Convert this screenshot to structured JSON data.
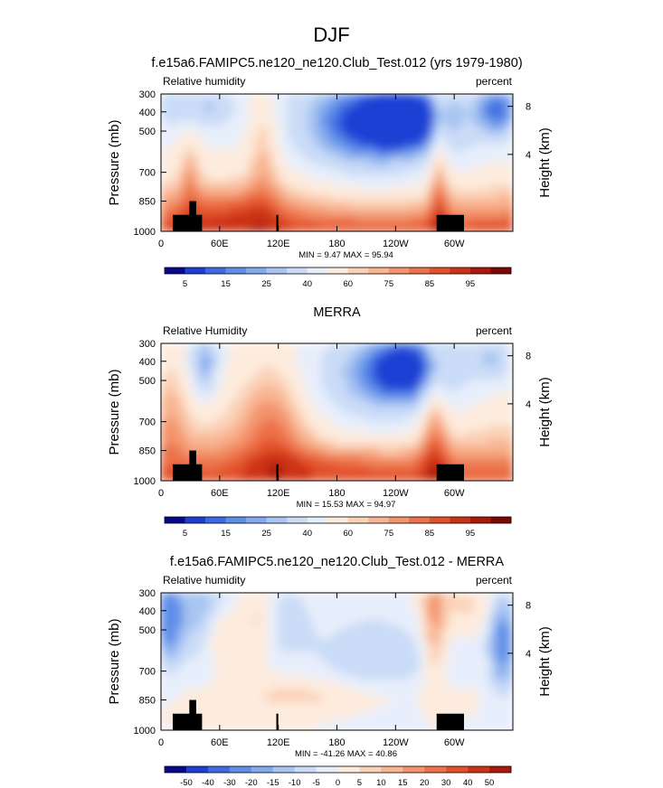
{
  "page_title": "DJF",
  "x_ticks": [
    "0",
    "60E",
    "120E",
    "180",
    "120W",
    "60W"
  ],
  "p_ticks": [
    "300",
    "400",
    "500",
    "700",
    "850",
    "1000"
  ],
  "h_ticks": [
    "8",
    "4"
  ],
  "chart_data": [
    {
      "type": "heatmap",
      "title": "f.e15a6.FAMIPC5.ne120_ne120.Club_Test.012 (yrs 1979-1980)",
      "left_label": "Relative humidity",
      "right_label": "percent",
      "ylabel": "Pressure (mb)",
      "ylabel_right": "Height (km)",
      "stats": "MIN =  9.47  MAX = 95.94",
      "x_range": [
        0,
        360
      ],
      "y_range_mb": [
        1000,
        300
      ],
      "colorbar_labels": [
        "5",
        "15",
        "25",
        "40",
        "60",
        "75",
        "85",
        "95"
      ],
      "colorbar_colors": [
        "#08088a",
        "#1f3fd4",
        "#3d6ae0",
        "#5f8ee8",
        "#84aaee",
        "#a9c5f2",
        "#cadcf7",
        "#e7eefb",
        "#fdebdd",
        "#fbd2b8",
        "#f8b592",
        "#f3946d",
        "#ec7249",
        "#e2512b",
        "#cc3216",
        "#a8190a",
        "#7a0806"
      ],
      "field": "model"
    },
    {
      "type": "heatmap",
      "title": "MERRA",
      "left_label": "Relative Humidity",
      "right_label": "percent",
      "ylabel": "Pressure (mb)",
      "ylabel_right": "Height (km)",
      "stats": "MIN = 15.53  MAX = 94.97",
      "x_range": [
        0,
        360
      ],
      "y_range_mb": [
        1000,
        300
      ],
      "colorbar_labels": [
        "5",
        "15",
        "25",
        "40",
        "60",
        "75",
        "85",
        "95"
      ],
      "colorbar_colors": [
        "#08088a",
        "#1f3fd4",
        "#3d6ae0",
        "#5f8ee8",
        "#84aaee",
        "#a9c5f2",
        "#cadcf7",
        "#e7eefb",
        "#fdebdd",
        "#fbd2b8",
        "#f8b592",
        "#f3946d",
        "#ec7249",
        "#e2512b",
        "#cc3216",
        "#a8190a",
        "#7a0806"
      ],
      "field": "obs"
    },
    {
      "type": "heatmap",
      "title": "f.e15a6.FAMIPC5.ne120_ne120.Club_Test.012 - MERRA",
      "left_label": "Relative humidity",
      "right_label": "percent",
      "ylabel": "Pressure (mb)",
      "ylabel_right": "Height (km)",
      "stats": "MIN = -41.26  MAX = 40.86",
      "x_range": [
        0,
        360
      ],
      "y_range_mb": [
        1000,
        300
      ],
      "colorbar_labels": [
        "-50",
        "-40",
        "-30",
        "-20",
        "-15",
        "-10",
        "-5",
        "0",
        "5",
        "10",
        "15",
        "20",
        "30",
        "40",
        "50"
      ],
      "colorbar_colors": [
        "#08088a",
        "#1f3fd4",
        "#3d6ae0",
        "#5f8ee8",
        "#84aaee",
        "#a9c5f2",
        "#cadcf7",
        "#e7eefb",
        "#fdebdd",
        "#fbd2b8",
        "#f8b592",
        "#f3946d",
        "#ec7249",
        "#e2512b",
        "#cc3216",
        "#a8190a"
      ],
      "field": "diff"
    }
  ]
}
